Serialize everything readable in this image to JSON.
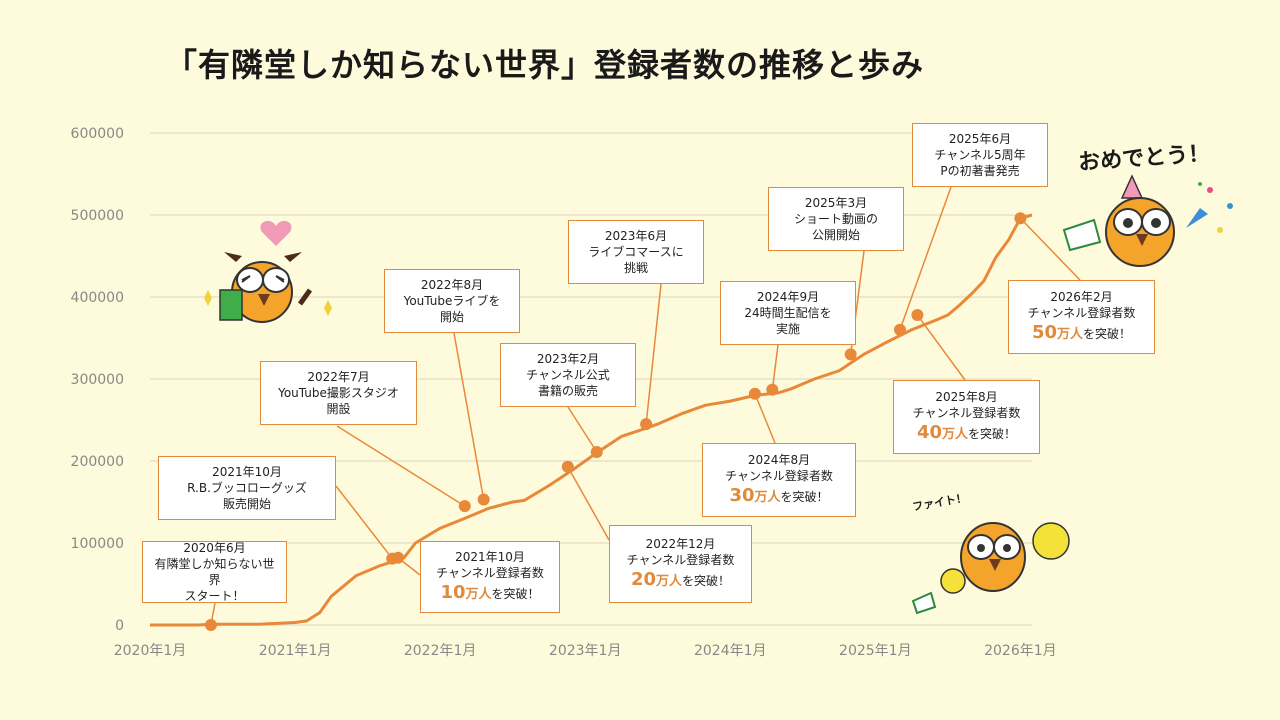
{
  "title": "「有隣堂しか知らない世界」登録者数の推移と歩み",
  "chart_data": {
    "type": "line",
    "title": "「有隣堂しか知らない世界」登録者数の推移と歩み",
    "xlabel": "",
    "ylabel": "",
    "ylim": [
      0,
      600000
    ],
    "yticks": [
      "600000",
      "500000",
      "400000",
      "300000",
      "200000",
      "100000",
      "0"
    ],
    "xticks": [
      "2020年1月",
      "2021年1月",
      "2022年1月",
      "2023年1月",
      "2024年1月",
      "2025年1月",
      "2026年1月"
    ],
    "grid": true,
    "series": [
      {
        "x": [
          2020.0,
          2020.33,
          2020.42,
          2020.75,
          2021.0,
          2021.08,
          2021.17,
          2021.25,
          2021.42,
          2021.58,
          2021.75,
          2021.83,
          2022.0,
          2022.17,
          2022.33,
          2022.5,
          2022.58,
          2022.75,
          2022.92,
          2023.08,
          2023.25,
          2023.42,
          2023.5,
          2023.67,
          2023.83,
          2024.0,
          2024.17,
          2024.33,
          2024.42,
          2024.58,
          2024.75,
          2024.92,
          2025.08,
          2025.25,
          2025.42,
          2025.5,
          2025.58,
          2025.67,
          2025.75,
          2025.83,
          2025.92,
          2026.0,
          2026.08
        ],
        "values": [
          0,
          0,
          1000,
          1000,
          3000,
          5000,
          15000,
          35000,
          60000,
          72000,
          82000,
          100000,
          118000,
          130000,
          142000,
          150000,
          152000,
          170000,
          190000,
          210000,
          230000,
          240000,
          245000,
          258000,
          268000,
          273000,
          280000,
          283000,
          288000,
          300000,
          310000,
          330000,
          345000,
          360000,
          372000,
          378000,
          390000,
          405000,
          420000,
          448000,
          470000,
          496000,
          500000
        ]
      }
    ],
    "markers": [
      {
        "x": 2020.42,
        "y": 0
      },
      {
        "x": 2021.67,
        "y": 81000
      },
      {
        "x": 2021.71,
        "y": 82000
      },
      {
        "x": 2022.17,
        "y": 145000
      },
      {
        "x": 2022.3,
        "y": 153000
      },
      {
        "x": 2022.88,
        "y": 193000
      },
      {
        "x": 2023.08,
        "y": 211000
      },
      {
        "x": 2023.42,
        "y": 245000
      },
      {
        "x": 2024.17,
        "y": 282000
      },
      {
        "x": 2024.29,
        "y": 287000
      },
      {
        "x": 2024.83,
        "y": 330000
      },
      {
        "x": 2025.17,
        "y": 360000
      },
      {
        "x": 2025.29,
        "y": 378000
      },
      {
        "x": 2026.0,
        "y": 496000
      }
    ]
  },
  "events": [
    {
      "l1": "2020年6月",
      "l2": "有隣堂しか知らない世界",
      "l3": "スタート！"
    },
    {
      "l1": "2021年10月",
      "l2": "R.B.ブッコローグッズ",
      "l3": "販売開始"
    },
    {
      "l1": "2021年10月",
      "l2": "チャンネル登録者数",
      "big": "10",
      "unit": "万人",
      "l3": "を突破！"
    },
    {
      "l1": "2022年7月",
      "l2": "YouTube撮影スタジオ",
      "l3": "開設"
    },
    {
      "l1": "2022年8月",
      "l2": "YouTubeライブを",
      "l3": "開始"
    },
    {
      "l1": "2023年2月",
      "l2": "チャンネル公式",
      "l3": "書籍の販売"
    },
    {
      "l1": "2022年12月",
      "l2": "チャンネル登録者数",
      "big": "20",
      "unit": "万人",
      "l3": "を突破！"
    },
    {
      "l1": "2023年6月",
      "l2": "ライブコマースに",
      "l3": "挑戦"
    },
    {
      "l1": "2024年9月",
      "l2": "24時間生配信を",
      "l3": "実施"
    },
    {
      "l1": "2024年8月",
      "l2": "チャンネル登録者数",
      "big": "30",
      "unit": "万人",
      "l3": "を突破！"
    },
    {
      "l1": "2025年3月",
      "l2": "ショート動画の",
      "l3": "公開開始"
    },
    {
      "l1": "2025年6月",
      "l2": "チャンネル5周年",
      "l3": "Pの初著書発売"
    },
    {
      "l1": "2025年8月",
      "l2": "チャンネル登録者数",
      "big": "40",
      "unit": "万人",
      "l3": "を突破！"
    },
    {
      "l1": "2026年2月",
      "l2": "チャンネル登録者数",
      "big": "50",
      "unit": "万人",
      "l3": "を突破！"
    }
  ],
  "decorations": {
    "omedetou": "おめでとう！",
    "faito": "ファイト！"
  },
  "colors": {
    "line": "#e8893a",
    "background": "#fefbdc",
    "box_border": "#e08a3c",
    "accent_text": "#e08a3c"
  }
}
